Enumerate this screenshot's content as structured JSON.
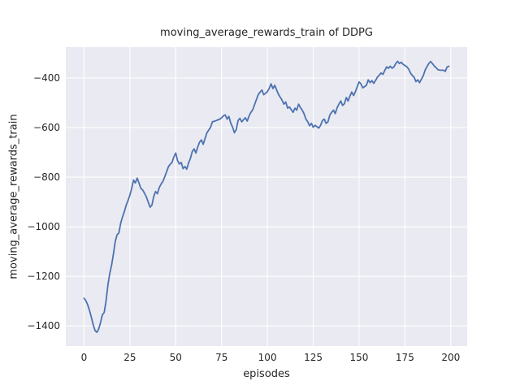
{
  "title": "moving_average_rewards_train of DDPG",
  "colors": {
    "figure_background": "#ffffff",
    "axes_background": "#eaeaf2",
    "gridline": "#ffffff",
    "line": "#4c72b0",
    "text": "#262626"
  },
  "chart_data": {
    "type": "line",
    "title": "moving_average_rewards_train of DDPG",
    "xlabel": "episodes",
    "ylabel": "moving_average_rewards_train",
    "legend": "none",
    "grid": "on",
    "xlim": [
      -9.95,
      208.95
    ],
    "ylim": [
      -1481,
      -276
    ],
    "x_ticks": [
      0,
      25,
      50,
      75,
      100,
      125,
      150,
      175,
      200
    ],
    "x_tick_labels": [
      "0",
      "25",
      "50",
      "75",
      "100",
      "125",
      "150",
      "175",
      "200"
    ],
    "y_ticks": [
      -400,
      -600,
      -800,
      -1000,
      -1200,
      -1400
    ],
    "y_tick_labels": [
      "−400",
      "−600",
      "−800",
      "−1000",
      "−1200",
      "−1400"
    ],
    "series": [
      {
        "name": "moving_average_rewards_train",
        "points": [
          [
            0,
            -1288
          ],
          [
            1,
            -1298
          ],
          [
            2,
            -1315
          ],
          [
            3,
            -1338
          ],
          [
            4,
            -1365
          ],
          [
            5,
            -1395
          ],
          [
            6,
            -1418
          ],
          [
            7,
            -1425
          ],
          [
            8,
            -1412
          ],
          [
            9,
            -1385
          ],
          [
            10,
            -1355
          ],
          [
            11,
            -1345
          ],
          [
            12,
            -1300
          ],
          [
            13,
            -1235
          ],
          [
            14,
            -1190
          ],
          [
            15,
            -1156
          ],
          [
            16,
            -1110
          ],
          [
            17,
            -1060
          ],
          [
            18,
            -1032
          ],
          [
            19,
            -1025
          ],
          [
            20,
            -985
          ],
          [
            21,
            -960
          ],
          [
            22,
            -938
          ],
          [
            23,
            -912
          ],
          [
            24,
            -894
          ],
          [
            25,
            -872
          ],
          [
            26,
            -845
          ],
          [
            27,
            -812
          ],
          [
            28,
            -823
          ],
          [
            29,
            -804
          ],
          [
            30,
            -825
          ],
          [
            31,
            -845
          ],
          [
            32,
            -852
          ],
          [
            33,
            -865
          ],
          [
            34,
            -880
          ],
          [
            35,
            -900
          ],
          [
            36,
            -921
          ],
          [
            37,
            -913
          ],
          [
            38,
            -878
          ],
          [
            39,
            -858
          ],
          [
            40,
            -867
          ],
          [
            41,
            -842
          ],
          [
            42,
            -828
          ],
          [
            43,
            -817
          ],
          [
            44,
            -798
          ],
          [
            45,
            -779
          ],
          [
            46,
            -758
          ],
          [
            47,
            -748
          ],
          [
            48,
            -740
          ],
          [
            49,
            -718
          ],
          [
            50,
            -703
          ],
          [
            51,
            -733
          ],
          [
            52,
            -747
          ],
          [
            53,
            -741
          ],
          [
            54,
            -766
          ],
          [
            55,
            -757
          ],
          [
            56,
            -768
          ],
          [
            57,
            -743
          ],
          [
            58,
            -725
          ],
          [
            59,
            -697
          ],
          [
            60,
            -686
          ],
          [
            61,
            -703
          ],
          [
            62,
            -678
          ],
          [
            63,
            -659
          ],
          [
            64,
            -650
          ],
          [
            65,
            -668
          ],
          [
            66,
            -644
          ],
          [
            67,
            -621
          ],
          [
            68,
            -610
          ],
          [
            69,
            -599
          ],
          [
            70,
            -577
          ],
          [
            71,
            -575
          ],
          [
            72,
            -572
          ],
          [
            73,
            -569
          ],
          [
            74,
            -566
          ],
          [
            75,
            -561
          ],
          [
            76,
            -553
          ],
          [
            77,
            -549
          ],
          [
            78,
            -566
          ],
          [
            79,
            -555
          ],
          [
            80,
            -582
          ],
          [
            81,
            -599
          ],
          [
            82,
            -621
          ],
          [
            83,
            -608
          ],
          [
            84,
            -572
          ],
          [
            85,
            -563
          ],
          [
            86,
            -577
          ],
          [
            87,
            -568
          ],
          [
            88,
            -561
          ],
          [
            89,
            -574
          ],
          [
            90,
            -553
          ],
          [
            91,
            -539
          ],
          [
            92,
            -528
          ],
          [
            93,
            -508
          ],
          [
            94,
            -487
          ],
          [
            95,
            -468
          ],
          [
            96,
            -457
          ],
          [
            97,
            -449
          ],
          [
            98,
            -468
          ],
          [
            99,
            -462
          ],
          [
            100,
            -455
          ],
          [
            101,
            -442
          ],
          [
            102,
            -424
          ],
          [
            103,
            -443
          ],
          [
            104,
            -430
          ],
          [
            105,
            -448
          ],
          [
            106,
            -466
          ],
          [
            107,
            -478
          ],
          [
            108,
            -490
          ],
          [
            109,
            -506
          ],
          [
            110,
            -497
          ],
          [
            111,
            -522
          ],
          [
            112,
            -517
          ],
          [
            113,
            -528
          ],
          [
            114,
            -539
          ],
          [
            115,
            -522
          ],
          [
            116,
            -530
          ],
          [
            117,
            -506
          ],
          [
            118,
            -519
          ],
          [
            119,
            -530
          ],
          [
            120,
            -545
          ],
          [
            121,
            -566
          ],
          [
            122,
            -577
          ],
          [
            123,
            -593
          ],
          [
            124,
            -583
          ],
          [
            125,
            -599
          ],
          [
            126,
            -591
          ],
          [
            127,
            -597
          ],
          [
            128,
            -602
          ],
          [
            129,
            -591
          ],
          [
            130,
            -572
          ],
          [
            131,
            -566
          ],
          [
            132,
            -583
          ],
          [
            133,
            -577
          ],
          [
            134,
            -550
          ],
          [
            135,
            -539
          ],
          [
            136,
            -530
          ],
          [
            137,
            -544
          ],
          [
            138,
            -520
          ],
          [
            139,
            -506
          ],
          [
            140,
            -493
          ],
          [
            141,
            -511
          ],
          [
            142,
            -504
          ],
          [
            143,
            -479
          ],
          [
            144,
            -493
          ],
          [
            145,
            -473
          ],
          [
            146,
            -457
          ],
          [
            147,
            -471
          ],
          [
            148,
            -455
          ],
          [
            149,
            -435
          ],
          [
            150,
            -416
          ],
          [
            151,
            -424
          ],
          [
            152,
            -440
          ],
          [
            153,
            -435
          ],
          [
            154,
            -430
          ],
          [
            155,
            -408
          ],
          [
            156,
            -419
          ],
          [
            157,
            -411
          ],
          [
            158,
            -422
          ],
          [
            159,
            -410
          ],
          [
            160,
            -397
          ],
          [
            161,
            -389
          ],
          [
            162,
            -380
          ],
          [
            163,
            -386
          ],
          [
            164,
            -370
          ],
          [
            165,
            -356
          ],
          [
            166,
            -361
          ],
          [
            167,
            -353
          ],
          [
            168,
            -361
          ],
          [
            169,
            -356
          ],
          [
            170,
            -342
          ],
          [
            171,
            -333
          ],
          [
            172,
            -342
          ],
          [
            173,
            -337
          ],
          [
            174,
            -345
          ],
          [
            175,
            -350
          ],
          [
            176,
            -355
          ],
          [
            177,
            -364
          ],
          [
            178,
            -380
          ],
          [
            179,
            -390
          ],
          [
            180,
            -397
          ],
          [
            181,
            -415
          ],
          [
            182,
            -408
          ],
          [
            183,
            -419
          ],
          [
            184,
            -405
          ],
          [
            185,
            -391
          ],
          [
            186,
            -369
          ],
          [
            187,
            -355
          ],
          [
            188,
            -342
          ],
          [
            189,
            -334
          ],
          [
            190,
            -342
          ],
          [
            191,
            -352
          ],
          [
            192,
            -359
          ],
          [
            193,
            -367
          ],
          [
            194,
            -369
          ],
          [
            195,
            -369
          ],
          [
            196,
            -369
          ],
          [
            197,
            -374
          ],
          [
            198,
            -356
          ],
          [
            199,
            -353
          ]
        ]
      }
    ]
  }
}
